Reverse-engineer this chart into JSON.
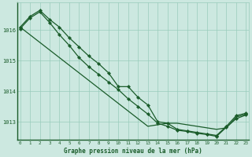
{
  "title": "Graphe pression niveau de la mer (hPa)",
  "background_color": "#cce8e0",
  "grid_color": "#99ccbb",
  "line_color": "#1a5c2a",
  "marker_color": "#1a5c2a",
  "x_ticks": [
    0,
    1,
    2,
    3,
    4,
    5,
    6,
    7,
    8,
    9,
    10,
    11,
    12,
    13,
    14,
    15,
    16,
    17,
    18,
    19,
    20,
    21,
    22,
    23
  ],
  "y_ticks": [
    1013,
    1014,
    1015,
    1016
  ],
  "ylim": [
    1012.4,
    1016.9
  ],
  "xlim": [
    -0.3,
    23.3
  ],
  "series_straight": [
    1016.1,
    1015.85,
    1015.6,
    1015.35,
    1015.1,
    1014.85,
    1014.6,
    1014.35,
    1014.1,
    1013.85,
    1013.6,
    1013.35,
    1013.1,
    1012.85,
    1012.9,
    1012.95,
    1012.95,
    1012.9,
    1012.85,
    1012.8,
    1012.75,
    1012.8,
    1013.15,
    1013.25
  ],
  "series_main": [
    1016.1,
    1016.45,
    1016.65,
    1016.35,
    1016.1,
    1015.75,
    1015.45,
    1015.15,
    1014.9,
    1014.6,
    1014.15,
    1014.15,
    1013.8,
    1013.55,
    1013.0,
    1012.95,
    1012.75,
    1012.7,
    1012.65,
    1012.6,
    1012.55,
    1012.85,
    1013.2,
    1013.28
  ],
  "series_alt": [
    1016.05,
    1016.4,
    1016.6,
    1016.25,
    1015.85,
    1015.5,
    1015.1,
    1014.8,
    1014.55,
    1014.3,
    1014.05,
    1013.75,
    1013.5,
    1013.25,
    1012.95,
    1012.85,
    1012.72,
    1012.68,
    1012.62,
    1012.58,
    1012.52,
    1012.82,
    1013.1,
    1013.22
  ]
}
